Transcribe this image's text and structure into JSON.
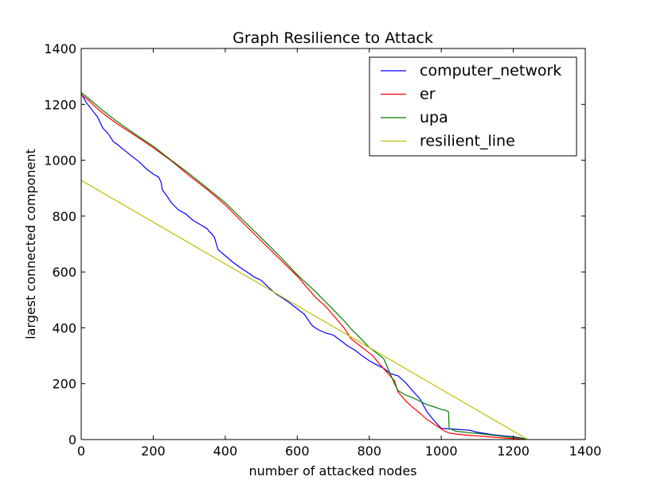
{
  "chart_data": {
    "type": "line",
    "title": "Graph Resilience to Attack",
    "xlabel": "number of attacked nodes",
    "ylabel": "largest connected component",
    "xlim": [
      0,
      1400
    ],
    "ylim": [
      0,
      1400
    ],
    "xticks": [
      0,
      200,
      400,
      600,
      800,
      1000,
      1200,
      1400
    ],
    "yticks": [
      0,
      200,
      400,
      600,
      800,
      1000,
      1200,
      1400
    ],
    "legend_position": "top-right",
    "grid": false,
    "series": [
      {
        "name": "computer_network",
        "color": "#0000ff",
        "x": [
          0,
          15,
          30,
          45,
          60,
          75,
          90,
          100,
          110,
          120,
          140,
          160,
          180,
          200,
          215,
          222,
          225,
          240,
          250,
          270,
          290,
          310,
          330,
          350,
          355,
          360,
          370,
          380,
          400,
          420,
          440,
          460,
          480,
          500,
          520,
          540,
          560,
          580,
          600,
          620,
          640,
          650,
          660,
          680,
          700,
          720,
          740,
          760,
          780,
          800,
          820,
          840,
          860,
          880,
          900,
          920,
          940,
          960,
          980,
          1000,
          1020,
          1040,
          1060,
          1080,
          1100,
          1120,
          1140,
          1160,
          1180,
          1200,
          1220,
          1240
        ],
        "values": [
          1238,
          1205,
          1180,
          1155,
          1115,
          1095,
          1065,
          1057,
          1046,
          1036,
          1015,
          995,
          970,
          950,
          940,
          920,
          895,
          868,
          848,
          822,
          808,
          785,
          770,
          755,
          745,
          740,
          724,
          680,
          658,
          636,
          617,
          600,
          582,
          570,
          545,
          522,
          506,
          488,
          468,
          448,
          410,
          400,
          392,
          381,
          374,
          355,
          335,
          320,
          300,
          282,
          268,
          255,
          236,
          228,
          205,
          175,
          147,
          100,
          68,
          40,
          38,
          37,
          35,
          33,
          26,
          22,
          18,
          15,
          12,
          10,
          6,
          0
        ]
      },
      {
        "name": "er",
        "color": "#ff0000",
        "x": [
          0,
          20,
          40,
          60,
          80,
          100,
          150,
          200,
          250,
          300,
          350,
          400,
          450,
          500,
          550,
          600,
          650,
          680,
          700,
          730,
          750,
          770,
          790,
          810,
          830,
          850,
          870,
          880,
          900,
          920,
          940,
          960,
          980,
          1000,
          1010,
          1020,
          1040,
          1060,
          1080,
          1100,
          1120,
          1140,
          1160,
          1180,
          1200,
          1220,
          1240
        ],
        "values": [
          1235,
          1215,
          1190,
          1168,
          1149,
          1130,
          1088,
          1045,
          998,
          945,
          895,
          840,
          775,
          711,
          648,
          585,
          510,
          475,
          445,
          400,
          360,
          340,
          320,
          300,
          268,
          240,
          210,
          170,
          140,
          116,
          95,
          72,
          55,
          38,
          30,
          24,
          20,
          17,
          15,
          13,
          11,
          9,
          7,
          5,
          4,
          2,
          0
        ]
      },
      {
        "name": "upa",
        "color": "#008000",
        "x": [
          0,
          20,
          40,
          60,
          80,
          100,
          150,
          200,
          250,
          300,
          350,
          400,
          450,
          500,
          550,
          600,
          650,
          700,
          730,
          750,
          770,
          800,
          820,
          840,
          850,
          860,
          870,
          880,
          900,
          920,
          940,
          960,
          980,
          1000,
          1010,
          1020,
          1022,
          1040,
          1060,
          1080,
          1100,
          1120,
          1140,
          1160,
          1180,
          1200,
          1220,
          1240
        ],
        "values": [
          1242,
          1222,
          1200,
          1178,
          1158,
          1138,
          1093,
          1050,
          1000,
          952,
          900,
          848,
          785,
          722,
          658,
          590,
          530,
          465,
          425,
          395,
          370,
          330,
          310,
          290,
          260,
          230,
          200,
          175,
          160,
          150,
          138,
          125,
          117,
          108,
          105,
          100,
          40,
          30,
          27,
          24,
          22,
          19,
          16,
          13,
          10,
          8,
          5,
          0
        ]
      },
      {
        "name": "resilient_line",
        "color": "#bfbf00",
        "x": [
          0,
          1240
        ],
        "values": [
          928,
          0
        ]
      }
    ]
  }
}
